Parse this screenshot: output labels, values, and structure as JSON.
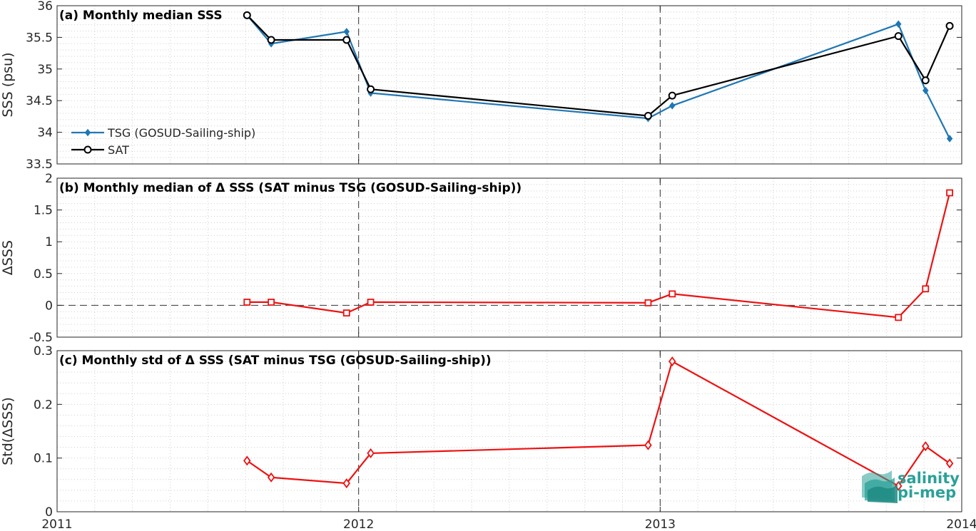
{
  "chart_data": [
    {
      "id": "a",
      "type": "line",
      "title": "(a) Monthly median SSS",
      "ylabel": "SSS (psu)",
      "xlim": [
        2011,
        2014
      ],
      "ylim": [
        33.5,
        36
      ],
      "yticks": [
        33.5,
        34,
        34.5,
        35,
        35.5,
        36
      ],
      "yticklabels": [
        "33.5",
        "34",
        "34.5",
        "35",
        "35.5",
        "36"
      ],
      "grid": true,
      "legend_position": "left",
      "series": [
        {
          "name": "TSG (GOSUD-Sailing-ship)",
          "color": "#1f77b4",
          "marker": "filled-diamond",
          "x": [
            2011.63,
            2011.71,
            2011.96,
            2012.04,
            2012.96,
            2013.04,
            2013.79,
            2013.88,
            2013.96
          ],
          "y": [
            35.85,
            35.4,
            35.59,
            34.62,
            34.22,
            34.42,
            35.71,
            34.66,
            33.9
          ]
        },
        {
          "name": "SAT",
          "color": "#000000",
          "marker": "open-circle",
          "x": [
            2011.63,
            2011.71,
            2011.96,
            2012.04,
            2012.96,
            2013.04,
            2013.79,
            2013.88,
            2013.96
          ],
          "y": [
            35.85,
            35.46,
            35.46,
            34.68,
            34.26,
            34.58,
            35.52,
            34.82,
            35.68
          ]
        }
      ]
    },
    {
      "id": "b",
      "type": "line",
      "title": "(b) Monthly median of Δ SSS (SAT minus TSG (GOSUD-Sailing-ship))",
      "ylabel": "ΔSSS",
      "xlim": [
        2011,
        2014
      ],
      "ylim": [
        -0.5,
        2
      ],
      "yticks": [
        -0.5,
        0,
        0.5,
        1,
        1.5,
        2
      ],
      "yticklabels": [
        "-0.5",
        "0",
        "0.5",
        "1",
        "1.5",
        "2"
      ],
      "zero_line": true,
      "grid": true,
      "series": [
        {
          "color": "#ee1111",
          "marker": "open-square",
          "x": [
            2011.63,
            2011.71,
            2011.96,
            2012.04,
            2012.96,
            2013.04,
            2013.79,
            2013.88,
            2013.96
          ],
          "y": [
            0.05,
            0.05,
            -0.12,
            0.05,
            0.04,
            0.18,
            -0.19,
            0.26,
            1.77
          ]
        }
      ]
    },
    {
      "id": "c",
      "type": "line",
      "title": "(c) Monthly std of Δ SSS (SAT minus TSG (GOSUD-Sailing-ship))",
      "ylabel": "Std(ΔSSS)",
      "xlim": [
        2011,
        2014
      ],
      "ylim": [
        0,
        0.3
      ],
      "yticks": [
        0,
        0.1,
        0.2,
        0.3
      ],
      "yticklabels": [
        "0",
        "0.1",
        "0.2",
        "0.3"
      ],
      "xticks": [
        2011,
        2012,
        2013,
        2014
      ],
      "xticklabels": [
        "2011",
        "2012",
        "2013",
        "2014"
      ],
      "grid": true,
      "series": [
        {
          "color": "#ee1111",
          "marker": "open-diamond",
          "x": [
            2011.63,
            2011.71,
            2011.96,
            2012.04,
            2012.96,
            2013.04,
            2013.79,
            2013.88,
            2013.96
          ],
          "y": [
            0.095,
            0.064,
            0.053,
            0.109,
            0.124,
            0.28,
            0.048,
            0.122,
            0.09
          ]
        }
      ]
    }
  ],
  "year_dividers": [
    2012,
    2013
  ],
  "logo": {
    "line1": "salinity",
    "line2": "pi-mep",
    "color": "#2aa198"
  }
}
